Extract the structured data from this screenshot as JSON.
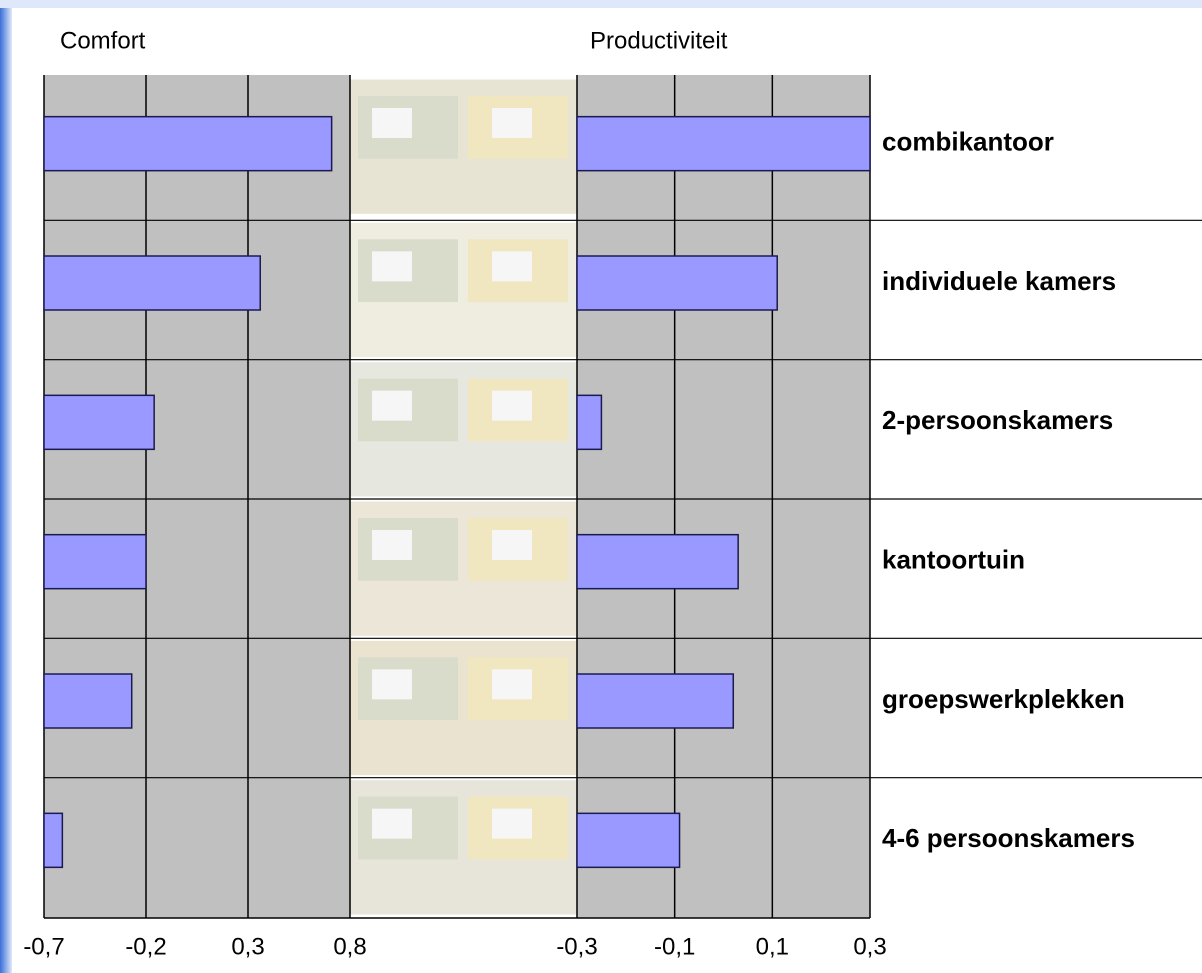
{
  "chart_data": [
    {
      "type": "bar",
      "orientation": "horizontal",
      "title": "Comfort",
      "values": [
        0.71,
        0.36,
        -0.16,
        -0.2,
        -0.27,
        -0.61
      ],
      "color": "#9999ff",
      "xlim": [
        -0.7,
        0.8
      ],
      "xticks": [
        {
          "value": -0.7,
          "label": "-0,7"
        },
        {
          "value": -0.2,
          "label": "-0,2"
        },
        {
          "value": 0.3,
          "label": "0,3"
        },
        {
          "value": 0.8,
          "label": "0,8"
        }
      ],
      "grid": true
    },
    {
      "type": "bar",
      "orientation": "horizontal",
      "title": "Productiviteit",
      "categories": [
        "combikantoor",
        "individuele kamers",
        "2-persoonskamers",
        "kantoortuin",
        "groepswerkplekken",
        "4-6 persoonskamers"
      ],
      "values": [
        0.3,
        0.11,
        -0.25,
        0.03,
        0.02,
        -0.09
      ],
      "color": "#9999ff",
      "xlim": [
        -0.3,
        0.3
      ],
      "xticks": [
        {
          "value": -0.3,
          "label": "-0,3"
        },
        {
          "value": -0.1,
          "label": "-0,1"
        },
        {
          "value": 0.1,
          "label": "0,1"
        },
        {
          "value": 0.3,
          "label": "0,3"
        }
      ],
      "grid": true
    }
  ]
}
